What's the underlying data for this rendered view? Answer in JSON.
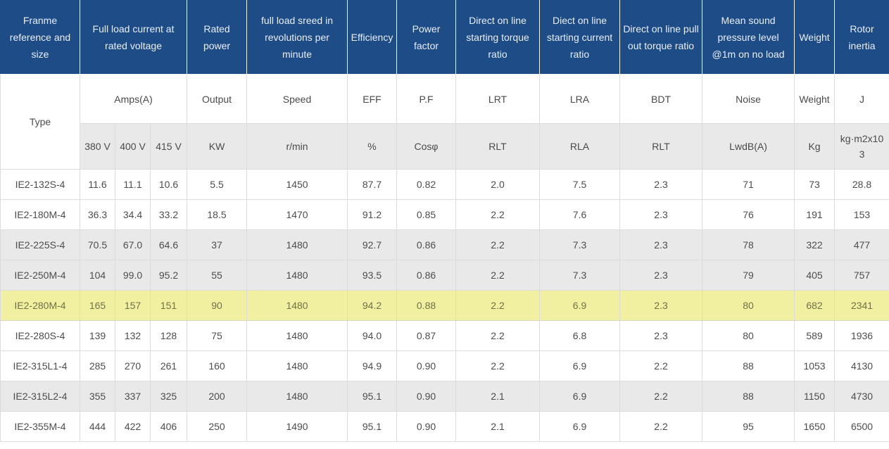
{
  "colors": {
    "header_bg": "#1e4c87",
    "header_text": "#e9eff8",
    "gray_row_bg": "#e9e9e9",
    "highlight_row_bg": "#f1f0a0",
    "highlight_row_text": "#72714a",
    "body_text": "#4d4d4d",
    "grid_line": "#dcdcdc"
  },
  "chart_data": {
    "type": "table",
    "header_row1": [
      "Franme reference and size",
      "Full load current at rated voltage",
      "Rated power",
      "full load sreed in revolutions per minute",
      "Efficiency",
      "Power factor",
      "Direct on line starting torque ratio",
      "Diect on line starting current ratio",
      "Direct on line pull out torque ratio",
      "Mean sound pressure level @1m on no load",
      "Weight",
      "Rotor inertia"
    ],
    "header_row2": [
      "Type",
      "Amps(A)",
      "Output",
      "Speed",
      "EFF",
      "P.F",
      "LRT",
      "LRA",
      "BDT",
      "Noise",
      "Weight",
      "J"
    ],
    "header_row3": [
      "380 V",
      "400 V",
      "415 V",
      "KW",
      "r/min",
      "%",
      "Cosφ",
      "RLT",
      "RLA",
      "RLT",
      "LwdB(A)",
      "Kg",
      "kg·m2x103"
    ],
    "highlighted_row": "IE2-280M-4",
    "rows": [
      {
        "shade": "white",
        "cells": [
          "IE2-132S-4",
          "11.6",
          "11.1",
          "10.6",
          "5.5",
          "1450",
          "87.7",
          "0.82",
          "2.0",
          "7.5",
          "2.3",
          "71",
          "73",
          "28.8"
        ]
      },
      {
        "shade": "white",
        "cells": [
          "IE2-180M-4",
          "36.3",
          "34.4",
          "33.2",
          "18.5",
          "1470",
          "91.2",
          "0.85",
          "2.2",
          "7.6",
          "2.3",
          "76",
          "191",
          "153"
        ]
      },
      {
        "shade": "gray",
        "cells": [
          "IE2-225S-4",
          "70.5",
          "67.0",
          "64.6",
          "37",
          "1480",
          "92.7",
          "0.86",
          "2.2",
          "7.3",
          "2.3",
          "78",
          "322",
          "477"
        ]
      },
      {
        "shade": "gray",
        "cells": [
          "IE2-250M-4",
          "104",
          "99.0",
          "95.2",
          "55",
          "1480",
          "93.5",
          "0.86",
          "2.2",
          "7.3",
          "2.3",
          "79",
          "405",
          "757"
        ]
      },
      {
        "shade": "highlight",
        "cells": [
          "IE2-280M-4",
          "165",
          "157",
          "151",
          "90",
          "1480",
          "94.2",
          "0.88",
          "2.2",
          "6.9",
          "2.3",
          "80",
          "682",
          "2341"
        ]
      },
      {
        "shade": "white",
        "cells": [
          "IE2-280S-4",
          "139",
          "132",
          "128",
          "75",
          "1480",
          "94.0",
          "0.87",
          "2.2",
          "6.8",
          "2.3",
          "80",
          "589",
          "1936"
        ]
      },
      {
        "shade": "white",
        "cells": [
          "IE2-315L1-4",
          "285",
          "270",
          "261",
          "160",
          "1480",
          "94.9",
          "0.90",
          "2.2",
          "6.9",
          "2.2",
          "88",
          "1053",
          "4130"
        ]
      },
      {
        "shade": "gray",
        "cells": [
          "IE2-315L2-4",
          "355",
          "337",
          "325",
          "200",
          "1480",
          "95.1",
          "0.90",
          "2.1",
          "6.9",
          "2.2",
          "88",
          "1150",
          "4730"
        ]
      },
      {
        "shade": "white",
        "cells": [
          "IE2-355M-4",
          "444",
          "422",
          "406",
          "250",
          "1490",
          "95.1",
          "0.90",
          "2.1",
          "6.9",
          "2.2",
          "95",
          "1650",
          "6500"
        ]
      }
    ]
  }
}
